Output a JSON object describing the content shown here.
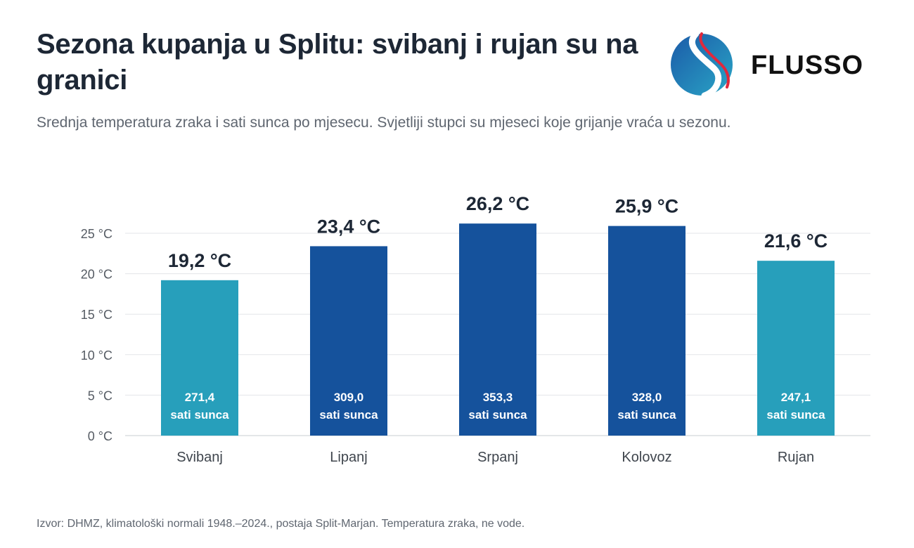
{
  "header": {
    "title": "Sezona kupanja u Splitu: svibanj i rujan su na granici",
    "subtitle": "Srednja temperatura zraka i sati sunca po mjesecu. Svjetliji stupci su mjeseci koje grijanje vraća u sezonu.",
    "brand": "FLUSSO"
  },
  "chart_data": {
    "type": "bar",
    "categories": [
      "Svibanj",
      "Lipanj",
      "Srpanj",
      "Kolovoz",
      "Rujan"
    ],
    "values": [
      19.2,
      23.4,
      26.2,
      25.9,
      21.6
    ],
    "value_labels": [
      "19,2 °C",
      "23,4 °C",
      "26,2 °C",
      "25,9 °C",
      "21,6 °C"
    ],
    "sunshine_hours": [
      271.4,
      309.0,
      353.3,
      328.0,
      247.1
    ],
    "sunshine_labels": [
      "271,4",
      "309,0",
      "353,3",
      "328,0",
      "247,1"
    ],
    "sunshine_unit": "sati sunca",
    "highlighted": [
      true,
      false,
      false,
      false,
      true
    ],
    "colors": {
      "highlight": "#279fbb",
      "default": "#15529c",
      "grid": "#e3e5e8",
      "axis_text": "#555b63",
      "label_text": "#1d2735"
    },
    "yticks": [
      "0 °C",
      "5 °C",
      "10 °C",
      "15 °C",
      "20 °C",
      "25 °C"
    ],
    "ylim": [
      0,
      25
    ],
    "grid": true
  },
  "footer": {
    "source": "Izvor: DHMZ, klimatološki normali 1948.–2024., postaja Split-Marjan. Temperatura zraka, ne vode."
  }
}
